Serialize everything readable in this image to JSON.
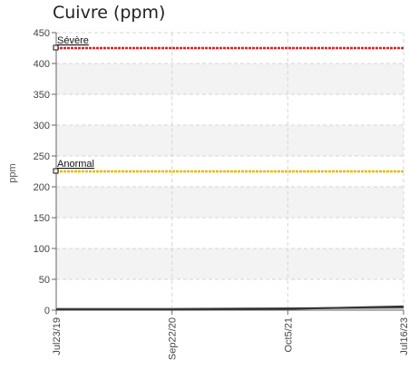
{
  "chart_data": {
    "type": "line",
    "title": "Cuivre (ppm)",
    "ylabel": "ppm",
    "xlabel": "",
    "ylim": [
      0,
      450
    ],
    "yticks": [
      0,
      50,
      100,
      150,
      200,
      250,
      300,
      350,
      400,
      450
    ],
    "x_tick_labels": [
      "Jul23/19",
      "Sep22/20",
      "Oct5/21",
      "Jul16/23"
    ],
    "grid": true,
    "thresholds": [
      {
        "label": "Sévère",
        "value": 425,
        "color": "#e02020"
      },
      {
        "label": "Anormal",
        "value": 225,
        "color": "#e8b800"
      }
    ],
    "series": [
      {
        "values": [
          2,
          2,
          3,
          4
        ],
        "color": "#555555"
      },
      {
        "values": [
          1,
          1,
          2,
          6
        ],
        "color": "#333333"
      }
    ]
  }
}
